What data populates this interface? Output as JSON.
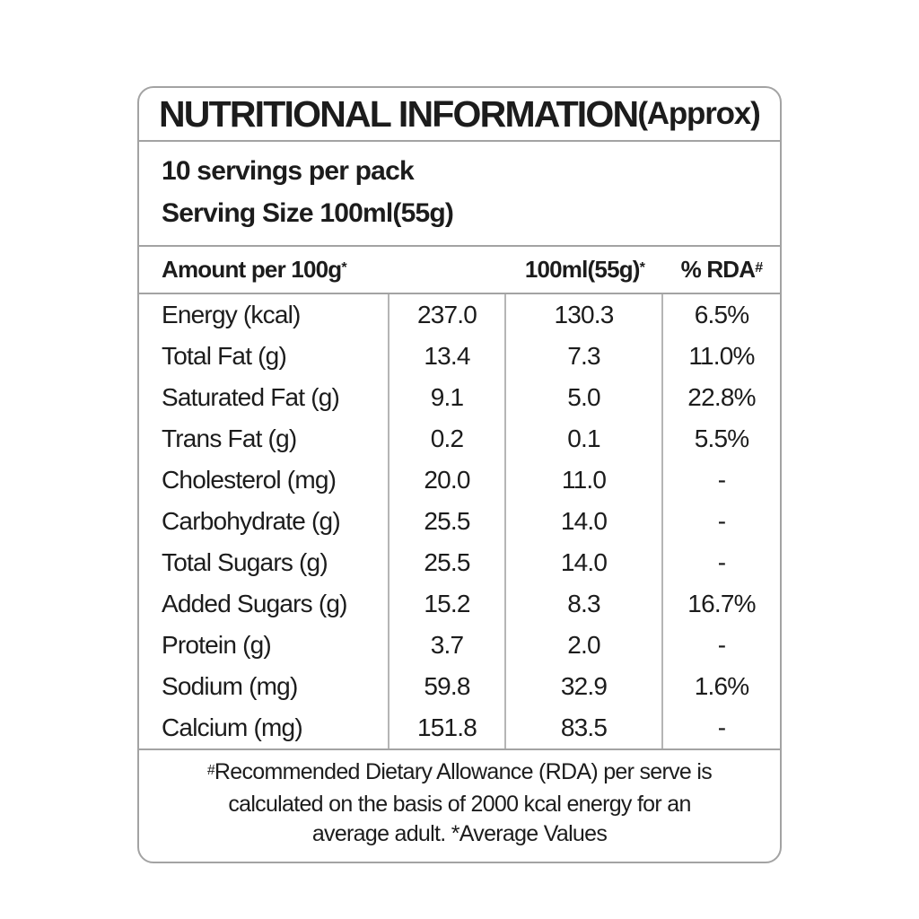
{
  "title": {
    "main": "NUTRITIONAL INFORMATION",
    "approx": "(Approx)"
  },
  "servings": {
    "per_pack": "10 servings per pack",
    "serving_size": "Serving Size 100ml(55g)"
  },
  "table": {
    "headers": {
      "amount": {
        "text": "Amount per 100g",
        "sup": "*"
      },
      "per_serving": {
        "text": "100ml(55g)",
        "sup": "*"
      },
      "rda": {
        "text": "% RDA",
        "sup": "#"
      }
    },
    "rows": [
      {
        "nutrient": "Energy (kcal)",
        "per_100g": "237.0",
        "per_serving": "130.3",
        "rda": "6.5%"
      },
      {
        "nutrient": "Total Fat (g)",
        "per_100g": "13.4",
        "per_serving": "7.3",
        "rda": "11.0%"
      },
      {
        "nutrient": "Saturated Fat (g)",
        "per_100g": "9.1",
        "per_serving": "5.0",
        "rda": "22.8%"
      },
      {
        "nutrient": "Trans Fat (g)",
        "per_100g": "0.2",
        "per_serving": "0.1",
        "rda": "5.5%"
      },
      {
        "nutrient": "Cholesterol (mg)",
        "per_100g": "20.0",
        "per_serving": "11.0",
        "rda": "-"
      },
      {
        "nutrient": "Carbohydrate (g)",
        "per_100g": "25.5",
        "per_serving": "14.0",
        "rda": "-"
      },
      {
        "nutrient": "Total Sugars (g)",
        "per_100g": "25.5",
        "per_serving": "14.0",
        "rda": "-"
      },
      {
        "nutrient": "Added Sugars (g)",
        "per_100g": "15.2",
        "per_serving": "8.3",
        "rda": "16.7%"
      },
      {
        "nutrient": "Protein (g)",
        "per_100g": "3.7",
        "per_serving": "2.0",
        "rda": "-"
      },
      {
        "nutrient": "Sodium (mg)",
        "per_100g": "59.8",
        "per_serving": "32.9",
        "rda": "1.6%"
      },
      {
        "nutrient": "Calcium (mg)",
        "per_100g": "151.8",
        "per_serving": "83.5",
        "rda": "-"
      }
    ]
  },
  "footnote": {
    "sup": "#",
    "lines": [
      "Recommended Dietary Allowance (RDA) per serve is",
      "calculated on the basis of 2000 kcal energy for an",
      "average adult. *Average Values"
    ]
  },
  "colors": {
    "text": "#1c1c1c",
    "border": "#a3a3a3",
    "column_divider": "#b5b5b5",
    "background": "#ffffff"
  }
}
